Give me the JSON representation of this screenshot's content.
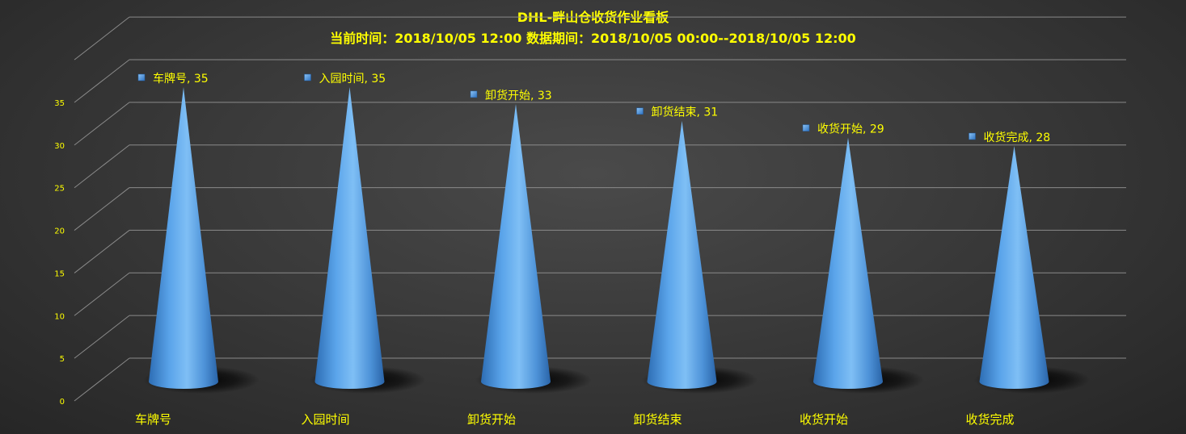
{
  "title": "DHL-畔山仓收货作业看板",
  "subtitle": "当前时间：2018/10/05  12:00    数据期间：2018/10/05  00:00--2018/10/05  12:00",
  "colors": {
    "text": "#ffff00",
    "cone": "#5fa8ec",
    "gridline": "#8a8a8a",
    "marker": "#4a90d9"
  },
  "chart_data": {
    "type": "bar",
    "style": "3d-cone",
    "categories": [
      "车牌号",
      "入园时间",
      "卸货开始",
      "卸货结束",
      "收货开始",
      "收货完成"
    ],
    "values": [
      35,
      35,
      33,
      31,
      29,
      28
    ],
    "data_labels": [
      "车牌号, 35",
      "入园时间, 35",
      "卸货开始, 33",
      "卸货结束, 31",
      "收货开始, 29",
      "收货完成, 28"
    ],
    "ylim": [
      0,
      35
    ],
    "yticks": [
      "0",
      "5",
      "10",
      "15",
      "20",
      "25",
      "30",
      "35"
    ],
    "grid": true,
    "legend": "none"
  }
}
